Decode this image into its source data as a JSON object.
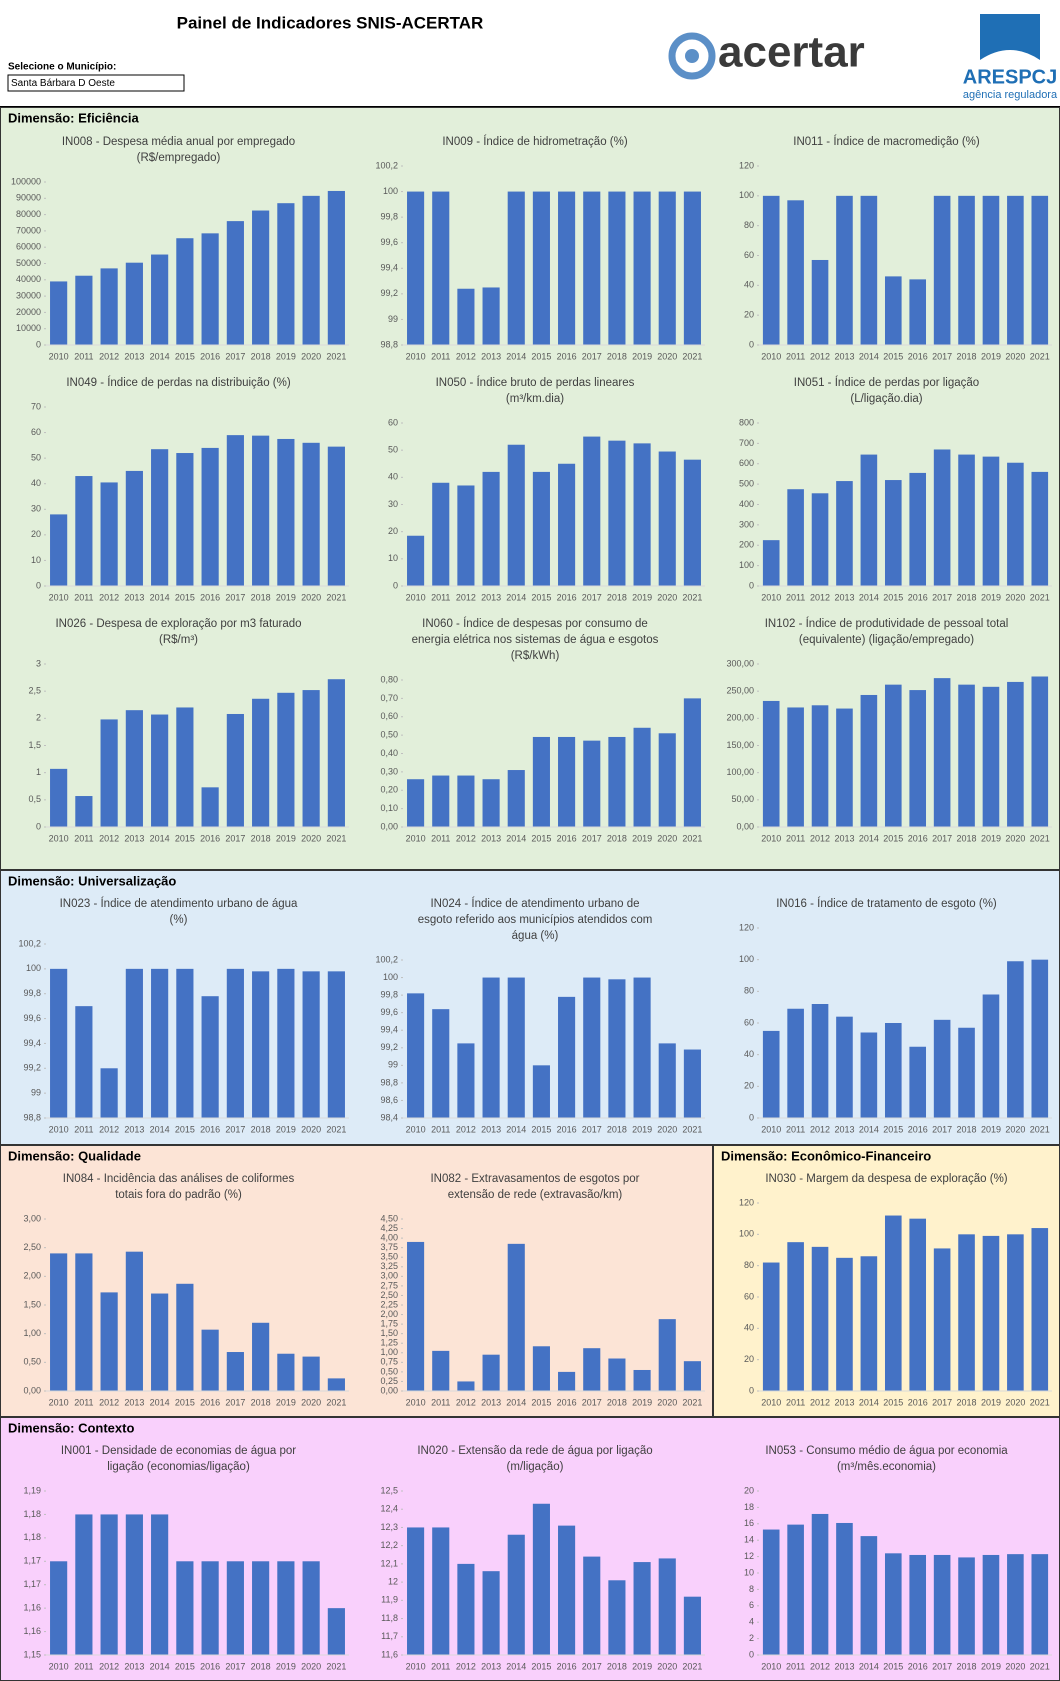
{
  "header": {
    "title": "Painel de Indicadores SNIS-ACERTAR",
    "selector_label": "Selecione o Município:",
    "municipality": "Santa Bárbara D Oeste",
    "logo_left": "acertar",
    "logo_right": "ARESPCJ",
    "logo_right_sub": "agência reguladora"
  },
  "sections": [
    {
      "title": "Dimensão: Eficiência"
    },
    {
      "title": "Dimensão: Universalização"
    },
    {
      "title": "Dimensão: Qualidade"
    },
    {
      "title": "Dimensão: Econômico-Financeiro"
    },
    {
      "title": "Dimensão: Contexto"
    }
  ],
  "chart_data": [
    {
      "type": "bar",
      "title": [
        "IN008 - Despesa média anual por empregado",
        "(R$/empregado)"
      ],
      "color": "#4472c4",
      "categories": [
        "2010",
        "2011",
        "2012",
        "2013",
        "2014",
        "2015",
        "2016",
        "2017",
        "2018",
        "2019",
        "2020",
        "2021"
      ],
      "values": [
        39000,
        42500,
        47000,
        50500,
        55500,
        65500,
        68500,
        76000,
        82500,
        87000,
        91500,
        94500
      ],
      "ylim": [
        0,
        100000
      ],
      "yticks": [
        0,
        10000,
        20000,
        30000,
        40000,
        50000,
        60000,
        70000,
        80000,
        90000,
        100000
      ]
    },
    {
      "type": "bar",
      "title": [
        "IN009 - Índice de hidrometração (%)"
      ],
      "color": "#4472c4",
      "categories": [
        "2010",
        "2011",
        "2012",
        "2013",
        "2014",
        "2015",
        "2016",
        "2017",
        "2018",
        "2019",
        "2020",
        "2021"
      ],
      "values": [
        100,
        100,
        99.24,
        99.25,
        100,
        100,
        100,
        100,
        100,
        100,
        100,
        100
      ],
      "ylim": [
        98.8,
        100.2
      ],
      "yticks": [
        {
          "value": 98.8,
          "label": "98,8"
        },
        99,
        {
          "value": 99.2,
          "label": "99,2"
        },
        {
          "value": 99.4,
          "label": "99,4"
        },
        {
          "value": 99.6,
          "label": "99,6"
        },
        {
          "value": 99.8,
          "label": "99,8"
        },
        100,
        {
          "value": 100.2,
          "label": "100,2"
        }
      ]
    },
    {
      "type": "bar",
      "title": [
        "IN011 - Índice de macromedição (%)"
      ],
      "color": "#4472c4",
      "categories": [
        "2010",
        "2011",
        "2012",
        "2013",
        "2014",
        "2015",
        "2016",
        "2017",
        "2018",
        "2019",
        "2020",
        "2021"
      ],
      "values": [
        100,
        97,
        57,
        100,
        100,
        46,
        44,
        100,
        100,
        100,
        100,
        100
      ],
      "ylim": [
        0,
        120
      ],
      "yticks": [
        0,
        20,
        40,
        60,
        80,
        100,
        120
      ]
    },
    {
      "type": "bar",
      "title": [
        "IN049 - Índice de perdas na distribuição (%)"
      ],
      "color": "#4472c4",
      "categories": [
        "2010",
        "2011",
        "2012",
        "2013",
        "2014",
        "2015",
        "2016",
        "2017",
        "2018",
        "2019",
        "2020",
        "2021"
      ],
      "values": [
        28,
        43,
        40.5,
        45,
        53.5,
        52,
        54,
        59,
        58.8,
        57.5,
        56,
        54.5
      ],
      "ylim": [
        0,
        70
      ],
      "yticks": [
        0,
        10,
        20,
        30,
        40,
        50,
        60,
        70
      ]
    },
    {
      "type": "bar",
      "title": [
        "IN050 - Índice bruto de perdas lineares",
        "(m³/km.dia)"
      ],
      "color": "#4472c4",
      "categories": [
        "2010",
        "2011",
        "2012",
        "2013",
        "2014",
        "2015",
        "2016",
        "2017",
        "2018",
        "2019",
        "2020",
        "2021"
      ],
      "values": [
        18.5,
        38,
        37,
        42,
        52,
        42,
        45,
        55,
        53.5,
        52.5,
        49.5,
        46.5
      ],
      "ylim": [
        0,
        60
      ],
      "yticks": [
        0,
        10,
        20,
        30,
        40,
        50,
        60
      ]
    },
    {
      "type": "bar",
      "title": [
        "IN051 - Índice de perdas por ligação",
        "(L/ligação.dia)"
      ],
      "color": "#4472c4",
      "categories": [
        "2010",
        "2011",
        "2012",
        "2013",
        "2014",
        "2015",
        "2016",
        "2017",
        "2018",
        "2019",
        "2020",
        "2021"
      ],
      "values": [
        225,
        475,
        455,
        515,
        645,
        520,
        555,
        670,
        645,
        635,
        605,
        560
      ],
      "ylim": [
        0,
        800
      ],
      "yticks": [
        0,
        100,
        200,
        300,
        400,
        500,
        600,
        700,
        800
      ]
    },
    {
      "type": "bar",
      "title": [
        "IN026 - Despesa de exploração por m3 faturado",
        "(R$/m³)"
      ],
      "color": "#4472c4",
      "categories": [
        "2010",
        "2011",
        "2012",
        "2013",
        "2014",
        "2015",
        "2016",
        "2017",
        "2018",
        "2019",
        "2020",
        "2021"
      ],
      "values": [
        1.07,
        0.57,
        1.98,
        2.15,
        2.07,
        2.2,
        0.73,
        2.08,
        2.36,
        2.47,
        2.52,
        2.72
      ],
      "ylim": [
        0,
        3
      ],
      "yticks": [
        0,
        {
          "value": 0.5,
          "label": "0,5"
        },
        1,
        {
          "value": 1.5,
          "label": "1,5"
        },
        2,
        {
          "value": 2.5,
          "label": "2,5"
        },
        3
      ]
    },
    {
      "type": "bar",
      "title": [
        "IN060 - Índice de despesas por consumo de",
        "energia elétrica nos sistemas de água e esgotos",
        "(R$/kWh)"
      ],
      "color": "#4472c4",
      "categories": [
        "2010",
        "2011",
        "2012",
        "2013",
        "2014",
        "2015",
        "2016",
        "2017",
        "2018",
        "2019",
        "2020",
        "2021"
      ],
      "values": [
        0.26,
        0.28,
        0.28,
        0.26,
        0.31,
        0.49,
        0.49,
        0.47,
        0.49,
        0.54,
        0.51,
        0.7
      ],
      "ylim": [
        0,
        0.8
      ],
      "yticks": [
        {
          "value": 0,
          "label": "0,00"
        },
        {
          "value": 0.1,
          "label": "0,10"
        },
        {
          "value": 0.2,
          "label": "0,20"
        },
        {
          "value": 0.3,
          "label": "0,30"
        },
        {
          "value": 0.4,
          "label": "0,40"
        },
        {
          "value": 0.5,
          "label": "0,50"
        },
        {
          "value": 0.6,
          "label": "0,60"
        },
        {
          "value": 0.7,
          "label": "0,70"
        },
        {
          "value": 0.8,
          "label": "0,80"
        }
      ]
    },
    {
      "type": "bar",
      "title": [
        "IN102 - Índice de produtividade de pessoal total",
        "(equivalente) (ligação/empregado)"
      ],
      "color": "#4472c4",
      "categories": [
        "2010",
        "2011",
        "2012",
        "2013",
        "2014",
        "2015",
        "2016",
        "2017",
        "2018",
        "2019",
        "2020",
        "2021"
      ],
      "values": [
        232,
        220,
        224,
        218,
        243,
        262,
        252,
        274,
        262,
        258,
        267,
        277
      ],
      "ylim": [
        0,
        300
      ],
      "yticks": [
        {
          "value": 0,
          "label": "0,00"
        },
        {
          "value": 50,
          "label": "50,00"
        },
        {
          "value": 100,
          "label": "100,00"
        },
        {
          "value": 150,
          "label": "150,00"
        },
        {
          "value": 200,
          "label": "200,00"
        },
        {
          "value": 250,
          "label": "250,00"
        },
        {
          "value": 300,
          "label": "300,00"
        }
      ]
    },
    {
      "type": "bar",
      "title": [
        "IN023 - Índice de atendimento urbano de água",
        "(%)"
      ],
      "color": "#4472c4",
      "categories": [
        "2010",
        "2011",
        "2012",
        "2013",
        "2014",
        "2015",
        "2016",
        "2017",
        "2018",
        "2019",
        "2020",
        "2021"
      ],
      "values": [
        100,
        99.7,
        99.2,
        100,
        100,
        100,
        99.78,
        100,
        99.98,
        100,
        99.98,
        99.98
      ],
      "ylim": [
        98.8,
        100.2
      ],
      "yticks": [
        {
          "value": 98.8,
          "label": "98,8"
        },
        99,
        {
          "value": 99.2,
          "label": "99,2"
        },
        {
          "value": 99.4,
          "label": "99,4"
        },
        {
          "value": 99.6,
          "label": "99,6"
        },
        {
          "value": 99.8,
          "label": "99,8"
        },
        100,
        {
          "value": 100.2,
          "label": "100,2"
        }
      ]
    },
    {
      "type": "bar",
      "title": [
        "IN024 - Índice de atendimento urbano de",
        "esgoto referido aos municípios atendidos com",
        "água (%)"
      ],
      "color": "#4472c4",
      "categories": [
        "2010",
        "2011",
        "2012",
        "2013",
        "2014",
        "2015",
        "2016",
        "2017",
        "2018",
        "2019",
        "2020",
        "2021"
      ],
      "values": [
        99.82,
        99.64,
        99.25,
        100,
        100,
        99,
        99.78,
        100,
        99.98,
        100,
        99.25,
        99.18
      ],
      "ylim": [
        98.4,
        100.2
      ],
      "yticks": [
        {
          "value": 98.4,
          "label": "98,4"
        },
        {
          "value": 98.6,
          "label": "98,6"
        },
        {
          "value": 98.8,
          "label": "98,8"
        },
        99,
        {
          "value": 99.2,
          "label": "99,2"
        },
        {
          "value": 99.4,
          "label": "99,4"
        },
        {
          "value": 99.6,
          "label": "99,6"
        },
        {
          "value": 99.8,
          "label": "99,8"
        },
        100,
        {
          "value": 100.2,
          "label": "100,2"
        }
      ]
    },
    {
      "type": "bar",
      "title": [
        "IN016 - Índice de tratamento de esgoto (%)"
      ],
      "color": "#4472c4",
      "categories": [
        "2010",
        "2011",
        "2012",
        "2013",
        "2014",
        "2015",
        "2016",
        "2017",
        "2018",
        "2019",
        "2020",
        "2021"
      ],
      "values": [
        55,
        69,
        72,
        64,
        54,
        60,
        45,
        62,
        57,
        78,
        99,
        100
      ],
      "ylim": [
        0,
        120
      ],
      "yticks": [
        0,
        20,
        40,
        60,
        80,
        100,
        120
      ]
    },
    {
      "type": "bar",
      "title": [
        "IN084 - Incidência das análises de coliformes",
        "totais fora do padrão (%)"
      ],
      "color": "#4472c4",
      "categories": [
        "2010",
        "2011",
        "2012",
        "2013",
        "2014",
        "2015",
        "2016",
        "2017",
        "2018",
        "2019",
        "2020",
        "2021"
      ],
      "values": [
        2.4,
        2.4,
        1.72,
        2.43,
        1.7,
        1.87,
        1.07,
        0.68,
        1.19,
        0.65,
        0.6,
        0.22
      ],
      "ylim": [
        0,
        3
      ],
      "yticks": [
        {
          "value": 0,
          "label": "0,00"
        },
        {
          "value": 0.5,
          "label": "0,50"
        },
        {
          "value": 1,
          "label": "1,00"
        },
        {
          "value": 1.5,
          "label": "1,50"
        },
        {
          "value": 2,
          "label": "2,00"
        },
        {
          "value": 2.5,
          "label": "2,50"
        },
        {
          "value": 3,
          "label": "3,00"
        }
      ]
    },
    {
      "type": "bar",
      "title": [
        "IN082 - Extravasamentos de esgotos por",
        "extensão de rede (extravasão/km)"
      ],
      "color": "#4472c4",
      "categories": [
        "2010",
        "2011",
        "2012",
        "2013",
        "2014",
        "2015",
        "2016",
        "2017",
        "2018",
        "2019",
        "2020",
        "2021"
      ],
      "values": [
        3.9,
        1.05,
        0.25,
        0.95,
        3.85,
        1.17,
        0.5,
        1.12,
        0.85,
        0.55,
        1.88,
        0.78
      ],
      "ylim": [
        0,
        4.5
      ],
      "yticks": [
        {
          "value": 0,
          "label": "0,00"
        },
        {
          "value": 0.25,
          "label": "0,25"
        },
        {
          "value": 0.5,
          "label": "0,50"
        },
        {
          "value": 0.75,
          "label": "0,75"
        },
        {
          "value": 1,
          "label": "1,00"
        },
        {
          "value": 1.25,
          "label": "1,25"
        },
        {
          "value": 1.5,
          "label": "1,50"
        },
        {
          "value": 1.75,
          "label": "1,75"
        },
        {
          "value": 2,
          "label": "2,00"
        },
        {
          "value": 2.25,
          "label": "2,25"
        },
        {
          "value": 2.5,
          "label": "2,50"
        },
        {
          "value": 2.75,
          "label": "2,75"
        },
        {
          "value": 3,
          "label": "3,00"
        },
        {
          "value": 3.25,
          "label": "3,25"
        },
        {
          "value": 3.5,
          "label": "3,50"
        },
        {
          "value": 3.75,
          "label": "3,75"
        },
        {
          "value": 4,
          "label": "4,00"
        },
        {
          "value": 4.25,
          "label": "4,25"
        },
        {
          "value": 4.5,
          "label": "4,50"
        }
      ]
    },
    {
      "type": "bar",
      "title": [
        "IN030 - Margem da despesa de exploração (%)"
      ],
      "color": "#4472c4",
      "categories": [
        "2010",
        "2011",
        "2012",
        "2013",
        "2014",
        "2015",
        "2016",
        "2017",
        "2018",
        "2019",
        "2020",
        "2021"
      ],
      "values": [
        82,
        95,
        92,
        85,
        86,
        112,
        110,
        91,
        100,
        99,
        100,
        104
      ],
      "ylim": [
        0,
        120
      ],
      "yticks": [
        0,
        20,
        40,
        60,
        80,
        100,
        120
      ]
    },
    {
      "type": "bar",
      "title": [
        "IN001 - Densidade de economias de água por",
        "ligação (economias/ligação)"
      ],
      "color": "#4472c4",
      "categories": [
        "2010",
        "2011",
        "2012",
        "2013",
        "2014",
        "2015",
        "2016",
        "2017",
        "2018",
        "2019",
        "2020",
        "2021"
      ],
      "values": [
        1.17,
        1.18,
        1.18,
        1.18,
        1.18,
        1.17,
        1.17,
        1.17,
        1.17,
        1.17,
        1.17,
        1.16
      ],
      "ylim": [
        1.15,
        1.185
      ],
      "yticks": [
        {
          "value": 1.15,
          "label": "1,15"
        },
        {
          "value": 1.155,
          "label": "1,16"
        },
        {
          "value": 1.16,
          "label": "1,16"
        },
        {
          "value": 1.165,
          "label": "1,17"
        },
        {
          "value": 1.17,
          "label": "1,17"
        },
        {
          "value": 1.175,
          "label": "1,18"
        },
        {
          "value": 1.18,
          "label": "1,18"
        },
        {
          "value": 1.185,
          "label": "1,19"
        }
      ]
    },
    {
      "type": "bar",
      "title": [
        "IN020 - Extensão da rede de água por ligação",
        "(m/ligação)"
      ],
      "color": "#4472c4",
      "categories": [
        "2010",
        "2011",
        "2012",
        "2013",
        "2014",
        "2015",
        "2016",
        "2017",
        "2018",
        "2019",
        "2020",
        "2021"
      ],
      "values": [
        12.3,
        12.3,
        12.1,
        12.06,
        12.26,
        12.43,
        12.31,
        12.14,
        12.01,
        12.11,
        12.13,
        11.92
      ],
      "ylim": [
        11.6,
        12.5
      ],
      "yticks": [
        {
          "value": 11.6,
          "label": "11,6"
        },
        {
          "value": 11.7,
          "label": "11,7"
        },
        {
          "value": 11.8,
          "label": "11,8"
        },
        {
          "value": 11.9,
          "label": "11,9"
        },
        12,
        {
          "value": 12.1,
          "label": "12,1"
        },
        {
          "value": 12.2,
          "label": "12,2"
        },
        {
          "value": 12.3,
          "label": "12,3"
        },
        {
          "value": 12.4,
          "label": "12,4"
        },
        {
          "value": 12.5,
          "label": "12,5"
        }
      ]
    },
    {
      "type": "bar",
      "title": [
        "IN053 - Consumo médio de água por economia",
        "(m³/mês.economia)"
      ],
      "color": "#4472c4",
      "categories": [
        "2010",
        "2011",
        "2012",
        "2013",
        "2014",
        "2015",
        "2016",
        "2017",
        "2018",
        "2019",
        "2020",
        "2021"
      ],
      "values": [
        15.3,
        15.9,
        17.2,
        16.1,
        14.5,
        12.4,
        12.2,
        12.2,
        11.9,
        12.2,
        12.3,
        12.3
      ],
      "ylim": [
        0,
        20
      ],
      "yticks": [
        0,
        2,
        4,
        6,
        8,
        10,
        12,
        14,
        16,
        18,
        20
      ]
    }
  ]
}
